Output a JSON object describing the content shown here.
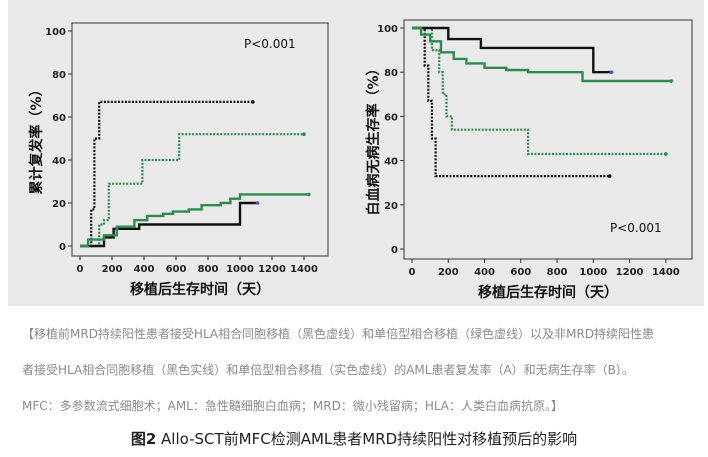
{
  "figure": {
    "title_label": "图2",
    "title_text": "Allo-SCT前MFC检测AML患者MRD持续阳性对移植预后的影响",
    "caption_lines": [
      "【移植前MRD持续阳性患者接受HLA相合同胞移植（黑色虚线）和单倍型相合移植（绿色虚线）以及非MRD持续阳性患",
      "者接受HLA相合同胞移植（黑色实线）和单倍型相合移植（实色虚线）的AML患者复发率（A）和无病生存率（B）。",
      "MFC：多参数流式细胞术；AML：急性髓细胞白血病；MRD：微小残留病；HLA：人类白血病抗原。】"
    ]
  },
  "colors": {
    "black": "#111111",
    "green": "#2e8b4e",
    "censor_blue": "#3a5fcd",
    "panel_bg": "#e9e9e9"
  },
  "chart_data": [
    {
      "type": "line",
      "step": true,
      "title": "",
      "xlabel": "移植后生存时间（天）",
      "ylabel": "累计复发率（%）",
      "annotation": "P<0.001",
      "xlim": [
        0,
        1500
      ],
      "ylim": [
        0,
        100
      ],
      "xticks": [
        0,
        200,
        400,
        600,
        800,
        1000,
        1200,
        1400
      ],
      "yticks": [
        0,
        20,
        40,
        60,
        80,
        100
      ],
      "series": [
        {
          "color": "black",
          "style": "dotted",
          "points": [
            [
              0,
              0
            ],
            [
              60,
              0
            ],
            [
              70,
              17
            ],
            [
              90,
              50
            ],
            [
              120,
              67
            ],
            [
              1080,
              67
            ]
          ]
        },
        {
          "color": "green",
          "style": "dotted",
          "points": [
            [
              0,
              0
            ],
            [
              110,
              0
            ],
            [
              120,
              10
            ],
            [
              150,
              12
            ],
            [
              180,
              29
            ],
            [
              380,
              29
            ],
            [
              390,
              40
            ],
            [
              600,
              40
            ],
            [
              620,
              52
            ],
            [
              1400,
              52
            ]
          ]
        },
        {
          "color": "black",
          "style": "solid",
          "points": [
            [
              0,
              0
            ],
            [
              140,
              0
            ],
            [
              150,
              4
            ],
            [
              200,
              4
            ],
            [
              210,
              8
            ],
            [
              360,
              8
            ],
            [
              370,
              10
            ],
            [
              990,
              10
            ],
            [
              1000,
              20
            ],
            [
              1110,
              20
            ]
          ]
        },
        {
          "color": "green",
          "style": "solid",
          "points": [
            [
              0,
              0
            ],
            [
              30,
              0
            ],
            [
              50,
              3
            ],
            [
              150,
              5
            ],
            [
              230,
              9
            ],
            [
              340,
              12
            ],
            [
              420,
              14
            ],
            [
              520,
              15
            ],
            [
              580,
              16
            ],
            [
              680,
              17
            ],
            [
              760,
              19
            ],
            [
              880,
              20
            ],
            [
              940,
              22
            ],
            [
              1000,
              24
            ],
            [
              1430,
              24
            ]
          ]
        }
      ]
    },
    {
      "type": "line",
      "step": true,
      "title": "",
      "xlabel": "移植后生存时间（天）",
      "ylabel": "白血病无病生存率（%）",
      "annotation": "P<0.001",
      "xlim": [
        0,
        1500
      ],
      "ylim": [
        0,
        100
      ],
      "xticks": [
        0,
        200,
        400,
        600,
        800,
        1000,
        1200,
        1400
      ],
      "yticks": [
        0,
        20,
        40,
        60,
        80,
        100
      ],
      "series": [
        {
          "color": "black",
          "style": "dotted",
          "points": [
            [
              0,
              100
            ],
            [
              60,
              100
            ],
            [
              70,
              83
            ],
            [
              90,
              67
            ],
            [
              110,
              50
            ],
            [
              130,
              33
            ],
            [
              1090,
              33
            ]
          ]
        },
        {
          "color": "green",
          "style": "dotted",
          "points": [
            [
              0,
              100
            ],
            [
              100,
              100
            ],
            [
              110,
              90
            ],
            [
              150,
              80
            ],
            [
              170,
              70
            ],
            [
              190,
              60
            ],
            [
              220,
              54
            ],
            [
              620,
              54
            ],
            [
              640,
              43
            ],
            [
              1400,
              43
            ]
          ]
        },
        {
          "color": "black",
          "style": "solid",
          "points": [
            [
              0,
              100
            ],
            [
              180,
              100
            ],
            [
              200,
              95
            ],
            [
              370,
              95
            ],
            [
              380,
              91
            ],
            [
              980,
              91
            ],
            [
              1000,
              80
            ],
            [
              1100,
              80
            ]
          ]
        },
        {
          "color": "green",
          "style": "solid",
          "points": [
            [
              0,
              100
            ],
            [
              50,
              97
            ],
            [
              100,
              94
            ],
            [
              160,
              89
            ],
            [
              230,
              86
            ],
            [
              300,
              84
            ],
            [
              400,
              82
            ],
            [
              520,
              81
            ],
            [
              640,
              80
            ],
            [
              900,
              80
            ],
            [
              940,
              76
            ],
            [
              1430,
              76
            ]
          ]
        }
      ]
    }
  ]
}
